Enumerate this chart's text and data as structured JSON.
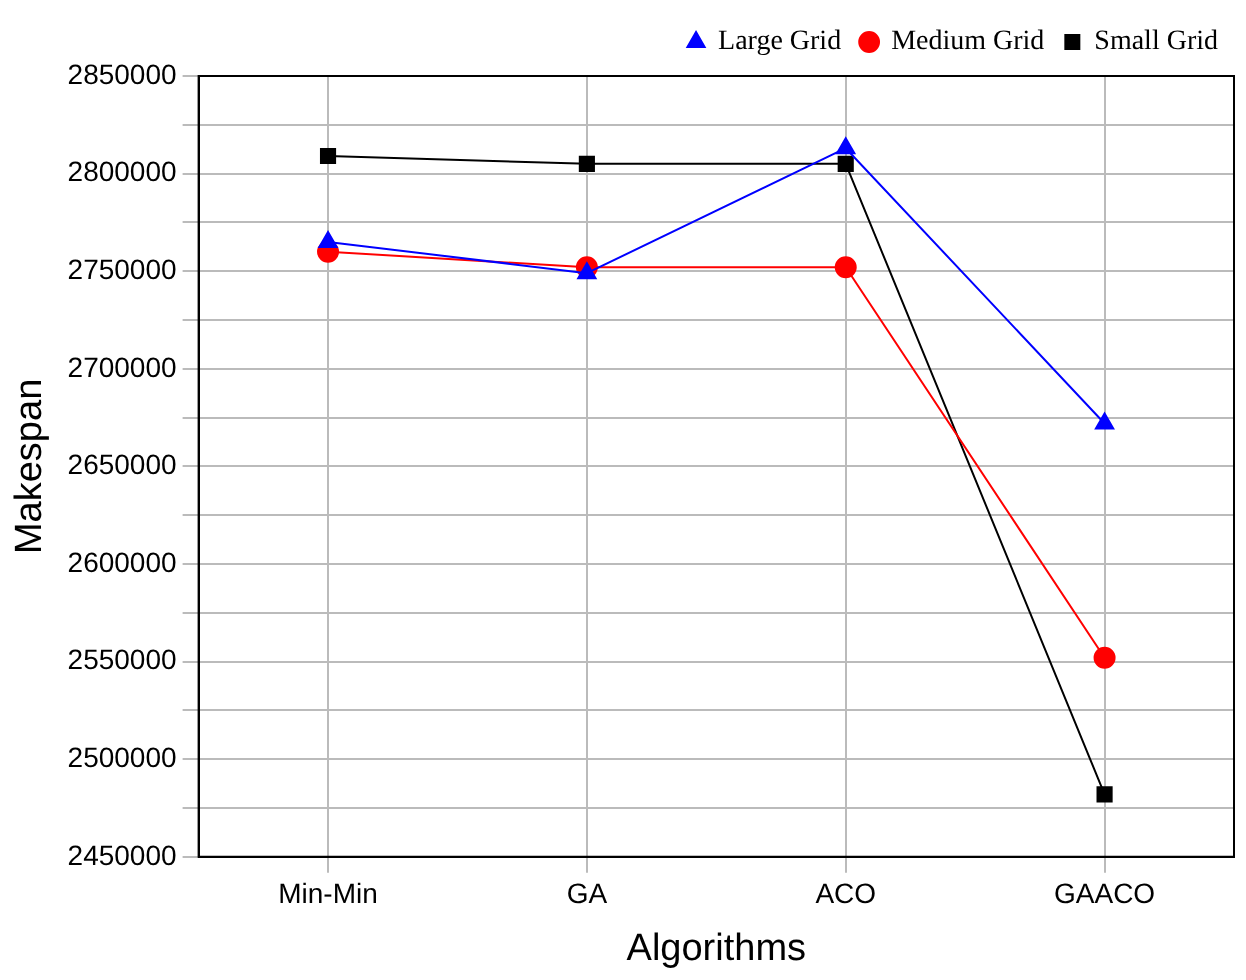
{
  "chart_data": {
    "type": "line",
    "xlabel": "Algorithms",
    "ylabel": "Makespan",
    "categories": [
      "Min-Min",
      "GA",
      "ACO",
      "GAACO"
    ],
    "series": [
      {
        "name": "Small Grid",
        "color": "#000000",
        "marker": "square",
        "values": [
          2809000,
          2805000,
          2805000,
          2482000
        ]
      },
      {
        "name": "Medium Grid",
        "color": "#ff0000",
        "marker": "circle",
        "values": [
          2760000,
          2752000,
          2752000,
          2552000
        ]
      },
      {
        "name": "Large Grid",
        "color": "#0000ff",
        "marker": "triangle",
        "values": [
          2765000,
          2749000,
          2813000,
          2672000
        ]
      }
    ],
    "ylim": [
      2450000,
      2850000
    ],
    "yticks": [
      2450000,
      {
        "value": 2475000,
        "label": null
      },
      2500000,
      {
        "value": 2525000,
        "label": null
      },
      2550000,
      {
        "value": 2575000,
        "label": null
      },
      2600000,
      {
        "value": 2625000,
        "label": null
      },
      2650000,
      {
        "value": 2675000,
        "label": null
      },
      2700000,
      {
        "value": 2725000,
        "label": null
      },
      2750000,
      {
        "value": 2775000,
        "label": null
      },
      2800000,
      {
        "value": 2825000,
        "label": null
      },
      2850000
    ],
    "grid": true,
    "legend": "top right",
    "line_style": "solid"
  }
}
